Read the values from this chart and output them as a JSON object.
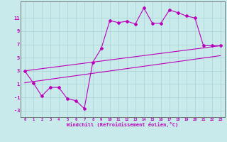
{
  "xlabel": "Windchill (Refroidissement éolien,°C)",
  "background_color": "#c8eaea",
  "grid_color": "#aad4d4",
  "line_color": "#bb00bb",
  "line1_x": [
    0,
    1,
    2,
    3,
    4,
    5,
    6,
    7,
    8,
    9,
    10,
    11,
    12,
    13,
    14,
    15,
    16,
    17,
    18,
    19,
    20,
    21,
    22,
    23
  ],
  "line1_y": [
    3.0,
    1.2,
    -0.8,
    0.5,
    0.5,
    -1.2,
    -1.5,
    -2.7,
    4.3,
    6.4,
    10.6,
    10.3,
    10.5,
    10.1,
    12.5,
    10.2,
    10.2,
    12.2,
    11.8,
    11.3,
    11.0,
    6.8,
    6.8,
    6.8
  ],
  "line2_x": [
    0,
    23
  ],
  "line2_y": [
    1.2,
    5.3
  ],
  "line3_x": [
    0,
    23
  ],
  "line3_y": [
    3.0,
    6.8
  ],
  "xlim": [
    -0.5,
    23.5
  ],
  "ylim": [
    -4.0,
    13.5
  ],
  "yticks": [
    -3,
    -1,
    1,
    3,
    5,
    7,
    9,
    11
  ],
  "xticks": [
    0,
    1,
    2,
    3,
    4,
    5,
    6,
    7,
    8,
    9,
    10,
    11,
    12,
    13,
    14,
    15,
    16,
    17,
    18,
    19,
    20,
    21,
    22,
    23
  ],
  "xtick_labels": [
    "0",
    "1",
    "2",
    "3",
    "4",
    "5",
    "6",
    "7",
    "8",
    "9",
    "10",
    "11",
    "12",
    "13",
    "14",
    "15",
    "16",
    "17",
    "18",
    "19",
    "20",
    "21",
    "22",
    "23"
  ]
}
